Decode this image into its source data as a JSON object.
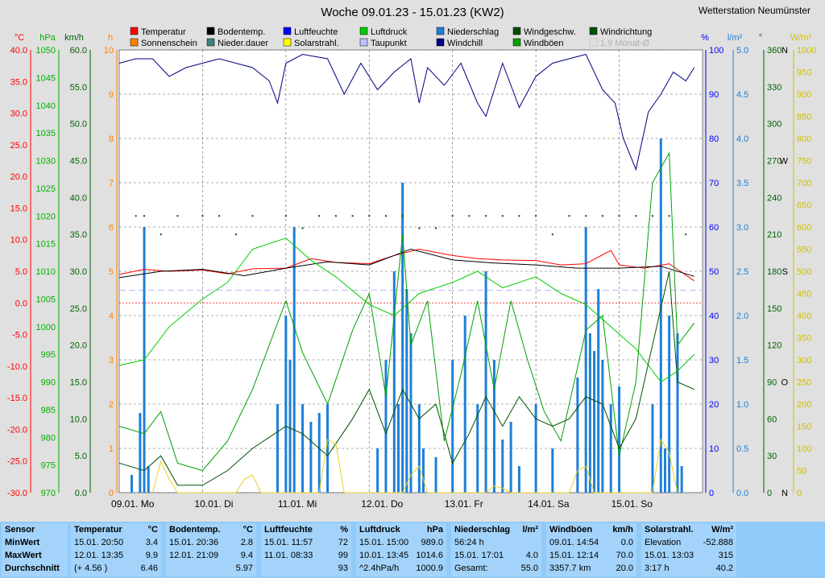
{
  "title": "Woche 09.01.23 - 15.01.23 (KW2)",
  "station": "Wetterstation Neumünster",
  "colors": {
    "temperature": "#ff0000",
    "sunshine": "#ff8000",
    "soil": "#000000",
    "precip_duration": "#408080",
    "humidity": "#0000ff",
    "solar": "#ffff00",
    "pressure": "#00cc00",
    "dewpoint": "#c0c0ff",
    "precip": "#1e7fd8",
    "windchill": "#000080",
    "windspeed": "#005000",
    "gusts": "#00a000",
    "winddir": "#005000",
    "monthly": "#b0b0b0"
  },
  "legend": [
    {
      "label": "Temperatur",
      "color": "#ff0000"
    },
    {
      "label": "Bodentemp.",
      "color": "#000000"
    },
    {
      "label": "Luftfeuchte",
      "color": "#0000ff"
    },
    {
      "label": "Luftdruck",
      "color": "#00cc00"
    },
    {
      "label": "Niederschlag",
      "color": "#1e7fd8"
    },
    {
      "label": "Windgeschw.",
      "color": "#005000"
    },
    {
      "label": "Windrichtung",
      "color": "#005000"
    },
    {
      "label": "Sonnenschein",
      "color": "#ff8000"
    },
    {
      "label": "Nieder.dauer",
      "color": "#408080"
    },
    {
      "label": "Solarstrahl.",
      "color": "#ffff00"
    },
    {
      "label": "Taupunkt",
      "color": "#c0c0ff"
    },
    {
      "label": "Windchill",
      "color": "#000080"
    },
    {
      "label": "Windböen",
      "color": "#00a000"
    },
    {
      "label": "1.9 Monat-Ø",
      "color": "#b0b0b0"
    }
  ],
  "axes": {
    "temp": {
      "unit": "°C",
      "min": -30,
      "max": 40,
      "step": 5
    },
    "pressure": {
      "unit": "hPa",
      "min": 970,
      "max": 1050,
      "step": 5
    },
    "wind": {
      "unit": "km/h",
      "min": 0,
      "max": 60,
      "step": 5
    },
    "hours": {
      "unit": "h",
      "min": 0,
      "max": 10,
      "step": 1
    },
    "humidity": {
      "unit": "%",
      "min": 0,
      "max": 100,
      "step": 10
    },
    "precip": {
      "unit": "l/m²",
      "min": 0,
      "max": 5,
      "step": 0.5
    },
    "direction": {
      "unit": "°",
      "min": 0,
      "max": 360,
      "step": 30
    },
    "solar": {
      "unit": "W/m²",
      "min": 0,
      "max": 1000,
      "step": 50
    }
  },
  "compass": [
    {
      "deg": 0,
      "label": "N"
    },
    {
      "deg": 90,
      "label": "O"
    },
    {
      "deg": 180,
      "label": "S"
    },
    {
      "deg": 270,
      "label": "W"
    },
    {
      "deg": 360,
      "label": "N"
    }
  ],
  "days": [
    "09.01. Mo",
    "10.01. Di",
    "11.01. Mi",
    "12.01. Do",
    "13.01. Fr",
    "14.01. Sa",
    "15.01. So"
  ],
  "chart_data": {
    "type": "line",
    "x_unit": "day index (0 = 09.01. 00:00)",
    "series": [
      {
        "name": "Temperatur",
        "axis": "temp",
        "x": [
          0,
          0.3,
          0.6,
          1.0,
          1.3,
          1.6,
          2.0,
          2.3,
          2.6,
          3.0,
          3.3,
          3.6,
          4.0,
          4.3,
          4.6,
          5.0,
          5.3,
          5.6,
          5.9,
          6.0,
          6.3,
          6.6,
          6.9
        ],
        "y": [
          4.5,
          5.3,
          5.0,
          5.2,
          4.6,
          5.4,
          5.5,
          7.0,
          6.4,
          6.2,
          7.5,
          8.5,
          7.5,
          7.0,
          6.8,
          6.7,
          6.0,
          6.2,
          8.3,
          6.0,
          5.5,
          6.2,
          3.5
        ]
      },
      {
        "name": "Bodentemp.",
        "axis": "temp",
        "x": [
          0,
          0.5,
          1.0,
          1.5,
          2.0,
          2.5,
          3.0,
          3.5,
          4.0,
          4.5,
          5.0,
          5.5,
          6.0,
          6.5,
          6.9
        ],
        "y": [
          4.0,
          5.0,
          5.3,
          4.3,
          5.5,
          6.5,
          6.0,
          8.5,
          6.8,
          6.3,
          6.0,
          5.5,
          5.5,
          5.8,
          4.2
        ]
      },
      {
        "name": "Luftfeuchte",
        "axis": "humidity",
        "x": [
          0,
          0.2,
          0.4,
          0.6,
          0.8,
          1.0,
          1.2,
          1.4,
          1.6,
          1.8,
          1.9,
          2.0,
          2.2,
          2.5,
          2.7,
          2.9,
          3.1,
          3.3,
          3.5,
          3.6,
          3.7,
          3.9,
          4.1,
          4.3,
          4.4,
          4.6,
          4.8,
          5.0,
          5.2,
          5.4,
          5.6,
          5.8,
          5.95,
          6.05,
          6.2,
          6.35,
          6.5,
          6.65,
          6.8,
          6.9
        ],
        "y": [
          97,
          98,
          98,
          94,
          96,
          97,
          98,
          97,
          96,
          93,
          88,
          97,
          99,
          98,
          90,
          97,
          91,
          95,
          98,
          88,
          96,
          92,
          97,
          88,
          85,
          97,
          87,
          94,
          97,
          98,
          99,
          91,
          88,
          80,
          73,
          86,
          90,
          95,
          93,
          96
        ]
      },
      {
        "name": "Luftdruck",
        "axis": "pressure",
        "x": [
          0,
          0.3,
          0.6,
          1.0,
          1.3,
          1.6,
          2.0,
          2.3,
          2.6,
          3.0,
          3.3,
          3.6,
          4.0,
          4.3,
          4.6,
          5.0,
          5.3,
          5.6,
          5.9,
          6.2,
          6.5,
          6.7,
          6.9
        ],
        "y": [
          993,
          994,
          1000,
          1005,
          1008,
          1014,
          1016,
          1012,
          1009,
          1004,
          1002,
          1006,
          1008,
          1010,
          1007,
          1009,
          1006,
          1004,
          1000,
          996,
          990,
          992,
          995
        ]
      },
      {
        "name": "Windböen",
        "axis": "wind",
        "x": [
          0,
          0.3,
          0.5,
          0.7,
          1.0,
          1.3,
          1.6,
          2.0,
          2.2,
          2.5,
          2.8,
          3.0,
          3.2,
          3.4,
          3.5,
          3.7,
          3.9,
          4.1,
          4.3,
          4.5,
          4.7,
          4.9,
          5.1,
          5.3,
          5.6,
          5.8,
          6.0,
          6.2,
          6.4,
          6.6,
          6.7,
          6.9
        ],
        "y": [
          9,
          8,
          11,
          4,
          3,
          7,
          14,
          26,
          19,
          12,
          22,
          27,
          13,
          35,
          20,
          26,
          7,
          16,
          26,
          14,
          26,
          18,
          11,
          7,
          22,
          24,
          5,
          15,
          42,
          46,
          20,
          23
        ]
      },
      {
        "name": "Windgeschw.",
        "axis": "wind",
        "x": [
          0,
          0.3,
          0.5,
          0.7,
          1.0,
          1.3,
          1.6,
          2.0,
          2.2,
          2.5,
          2.8,
          3.0,
          3.2,
          3.4,
          3.6,
          3.8,
          4.0,
          4.2,
          4.4,
          4.6,
          4.8,
          5.0,
          5.2,
          5.4,
          5.6,
          5.8,
          6.0,
          6.2,
          6.4,
          6.6,
          6.7,
          6.9
        ],
        "y": [
          4,
          3,
          5,
          1,
          1,
          3,
          6,
          9,
          8,
          5,
          10,
          14,
          8,
          14,
          10,
          12,
          4,
          8,
          13,
          9,
          13,
          10,
          9,
          10,
          13,
          12,
          6,
          10,
          20,
          30,
          15,
          14
        ]
      },
      {
        "name": "Solarstrahl.",
        "axis": "solar",
        "x": [
          0.4,
          0.5,
          0.6,
          0.7,
          1.4,
          1.5,
          1.6,
          1.7,
          2.4,
          2.5,
          2.6,
          2.7,
          3.4,
          3.5,
          3.6,
          3.7,
          4.4,
          4.5,
          4.6,
          4.7,
          5.4,
          5.5,
          5.6,
          5.7,
          6.4,
          6.5,
          6.6,
          6.7
        ],
        "y": [
          0,
          70,
          30,
          0,
          0,
          30,
          40,
          0,
          0,
          120,
          110,
          0,
          0,
          40,
          60,
          0,
          0,
          15,
          10,
          0,
          0,
          50,
          60,
          0,
          0,
          120,
          90,
          0
        ]
      }
    ],
    "bars_precip": {
      "x": [
        0.15,
        0.25,
        0.3,
        0.35,
        1.9,
        2.0,
        2.05,
        2.1,
        2.2,
        2.3,
        2.4,
        2.5,
        3.1,
        3.2,
        3.3,
        3.35,
        3.4,
        3.45,
        3.5,
        3.6,
        3.65,
        3.8,
        4.0,
        4.15,
        4.3,
        4.4,
        4.5,
        4.6,
        4.7,
        4.8,
        5.0,
        5.2,
        5.5,
        5.6,
        5.65,
        5.7,
        5.75,
        5.8,
        5.9,
        6.0,
        6.4,
        6.5,
        6.55,
        6.6,
        6.7,
        6.75
      ],
      "y": [
        0.2,
        0.9,
        3.0,
        0.3,
        1.0,
        2.0,
        1.5,
        3.0,
        1.0,
        0.8,
        0.9,
        1.0,
        0.5,
        1.5,
        2.5,
        1.0,
        3.5,
        2.3,
        1.8,
        1.0,
        0.5,
        0.4,
        1.5,
        2.0,
        1.0,
        2.5,
        1.5,
        0.6,
        0.8,
        0.3,
        1.0,
        0.5,
        1.3,
        3.0,
        1.8,
        1.6,
        2.3,
        1.5,
        1.0,
        1.2,
        1.0,
        4.0,
        0.5,
        2.0,
        1.8,
        0.3
      ]
    },
    "points_winddir": {
      "x": [
        0.2,
        0.3,
        0.5,
        0.7,
        1.0,
        1.2,
        1.4,
        1.6,
        2.0,
        2.2,
        2.4,
        2.6,
        2.8,
        3.0,
        3.2,
        3.4,
        3.6,
        3.8,
        4.0,
        4.2,
        4.4,
        4.6,
        4.8,
        5.0,
        5.2,
        5.4,
        5.6,
        5.8,
        6.0,
        6.2,
        6.4,
        6.6,
        6.8
      ],
      "y": [
        225,
        225,
        210,
        225,
        225,
        225,
        210,
        225,
        225,
        215,
        225,
        225,
        225,
        225,
        225,
        225,
        215,
        215,
        225,
        225,
        225,
        225,
        225,
        225,
        210,
        225,
        225,
        225,
        225,
        225,
        225,
        225,
        210
      ]
    },
    "sensor_table": [
      {
        "sensor": "Temperatur",
        "unit": "°C",
        "min_when": "15.01.  20:50",
        "min": "3.4",
        "max_when": "12.01.  13:35",
        "max": "9.9",
        "avg_note": "(+ 4.56 )",
        "avg": "6.46"
      },
      {
        "sensor": "Bodentemp.",
        "unit": "°C",
        "min_when": "15.01.  20:36",
        "min": "2.8",
        "max_when": "12.01.  21:09",
        "max": "9.4",
        "avg_note": "",
        "avg": "5.97"
      },
      {
        "sensor": "Luftfeuchte",
        "unit": "%",
        "min_when": "15.01.  11:57",
        "min": "72",
        "max_when": "11.01.  08:33",
        "max": "99",
        "avg_note": "",
        "avg": "93"
      },
      {
        "sensor": "Luftdruck",
        "unit": "hPa",
        "min_when": "15.01.  15:00",
        "min": "989.0",
        "max_when": "10.01.  13:45",
        "max": "1014.6",
        "avg_note": "^2.4hPa/h",
        "avg": "1000.9"
      },
      {
        "sensor": "Niederschlag",
        "unit": "l/m²",
        "min_when": "56:24 h",
        "min": "",
        "max_when": "15.01.  17:01",
        "max": "4.0",
        "avg_note": "Gesamt:",
        "avg": "55.0"
      },
      {
        "sensor": "Windböen",
        "unit": "km/h",
        "min_when": "09.01.  14:54",
        "min": "0.0",
        "max_when": "15.01.  12:14",
        "max": "70.0",
        "avg_note": "3357.7 km",
        "avg": "20.0"
      },
      {
        "sensor": "Solarstrahl.",
        "unit": "W/m²",
        "min_when": "Elevation",
        "min": "-52.888",
        "max_when": "15.01.  13:03",
        "max": "315",
        "avg_note": "3:17 h",
        "avg": "40.2"
      }
    ]
  },
  "stats_labels": {
    "sensor": "Sensor",
    "min": "MinWert",
    "max": "MaxWert",
    "avg": "Durchschnitt"
  }
}
